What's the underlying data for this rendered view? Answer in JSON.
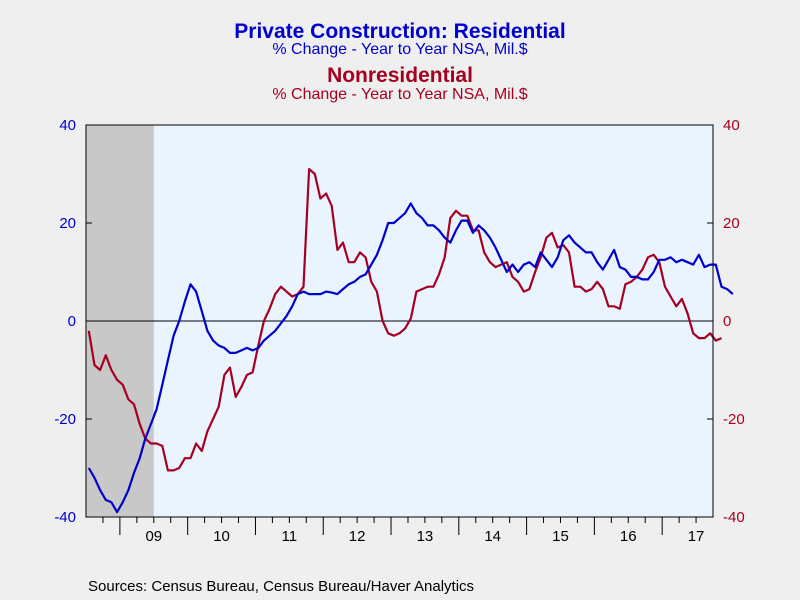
{
  "colors": {
    "residential": "#0000cc",
    "nonresidential": "#a50021",
    "plot_bg": "#eaf4ff",
    "page_bg": "#efefef",
    "recession": "#c8c8c8"
  },
  "titles": {
    "residential_title": "Private Construction: Residential",
    "residential_sub": "% Change - Year to Year     NSA, Mil.$",
    "nonresidential_title": "Nonresidential",
    "nonresidential_sub": "% Change - Year to Year     NSA, Mil.$"
  },
  "source": "Sources:  Census Bureau, Census Bureau/Haver Analytics",
  "chart_data": {
    "type": "line",
    "x_start": "2008-07",
    "x_end": "2017-09",
    "xticks": [
      "09",
      "10",
      "11",
      "12",
      "13",
      "14",
      "15",
      "16",
      "17"
    ],
    "ylim_left": [
      -40,
      40
    ],
    "ylim_right": [
      -40,
      40
    ],
    "yticks_left": [
      "40",
      "20",
      "0",
      "-20",
      "-40"
    ],
    "yticks_right": [
      "40",
      "20",
      "0",
      "-20",
      "-40"
    ],
    "grid": false,
    "zero_line": true,
    "recession_shading": {
      "start": "2008-07",
      "end": "2009-06"
    },
    "series": [
      {
        "name": "Private Construction: Residential",
        "axis": "left",
        "values": [
          -30,
          -32,
          -34.5,
          -36.5,
          -37,
          -39,
          -37,
          -34.5,
          -31,
          -28,
          -24,
          -21,
          -18,
          -13,
          -8,
          -3,
          0,
          4,
          7.5,
          6,
          2,
          -2,
          -4,
          -5,
          -5.5,
          -6.5,
          -6.5,
          -6,
          -5.5,
          -6,
          -5.5,
          -4,
          -3,
          -2,
          -0.5,
          1,
          3,
          5.5,
          6,
          5.5,
          5.5,
          5.5,
          6,
          5.8,
          5.5,
          6.5,
          7.5,
          8,
          9,
          9.5,
          11.5,
          13.5,
          16.5,
          20,
          20,
          21,
          22,
          24,
          22,
          21,
          19.5,
          19.5,
          18.5,
          17,
          16,
          18.5,
          20.5,
          20.5,
          18,
          19.5,
          18.5,
          17,
          15,
          12.5,
          10,
          11.5,
          10,
          11.5,
          12,
          11,
          14,
          12.5,
          11,
          13,
          16.5,
          17.5,
          16,
          15,
          14,
          14,
          12,
          10.5,
          12.5,
          14.5,
          11,
          10.5,
          9,
          9,
          8.5,
          8.5,
          10,
          12.5,
          12.5,
          13,
          12,
          12.5,
          12,
          11.5,
          13.5,
          11,
          11.5,
          11.5,
          7,
          6.5,
          5.5
        ]
      },
      {
        "name": "Nonresidential",
        "axis": "right",
        "values": [
          -2,
          -9,
          -10,
          -7,
          -10,
          -12,
          -13,
          -16,
          -17,
          -21,
          -24,
          -25,
          -25,
          -25.5,
          -30.5,
          -30.5,
          -30,
          -28,
          -28,
          -25,
          -26.5,
          -22.5,
          -20,
          -17.5,
          -11,
          -9.5,
          -15.5,
          -13.5,
          -11,
          -10.5,
          -5,
          0,
          2.5,
          5.5,
          7,
          6,
          5,
          5.5,
          7,
          31,
          30,
          25,
          26,
          23.5,
          14.5,
          16,
          12,
          12,
          14,
          13,
          8,
          6,
          0,
          -2.5,
          -3,
          -2.5,
          -1.5,
          0.5,
          6,
          6.5,
          7,
          7,
          9.5,
          13,
          21,
          22.5,
          21.5,
          21.5,
          18.5,
          18.5,
          14,
          12,
          11,
          11.5,
          12,
          9,
          8,
          6,
          6.5,
          10,
          13,
          17,
          18,
          15,
          15.5,
          14,
          7,
          7,
          6,
          6.5,
          8,
          6.5,
          3,
          3,
          2.5,
          7.5,
          8,
          9,
          10.5,
          13,
          13.5,
          12,
          7,
          5,
          3,
          4.5,
          1.5,
          -2.5,
          -3.5,
          -3.5,
          -2.5,
          -4,
          -3.5
        ]
      }
    ]
  }
}
